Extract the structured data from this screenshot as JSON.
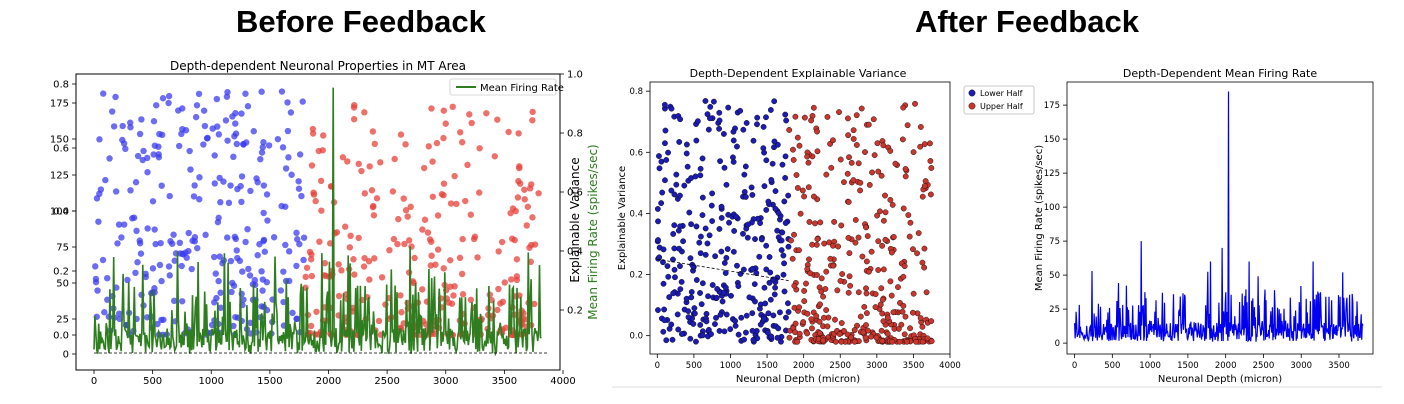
{
  "headings": {
    "before": "Before Feedback",
    "after": "After Feedback"
  },
  "chart_data": [
    {
      "type": "scatter",
      "panel": "before",
      "title": "Depth-dependent Neuronal Properties in MT Area",
      "xlabel": "",
      "ylabel_right_1": "Explainable Variance",
      "ylabel_right_2": "Mean Firing Rate (spikes/sec)",
      "x_ticks": [
        "0",
        "500",
        "1000",
        "1500",
        "2000",
        "2500",
        "3000",
        "3500",
        "4000"
      ],
      "y_left_ticks_rate": [
        "0",
        "25",
        "50",
        "75",
        "100",
        "125",
        "150",
        "175"
      ],
      "y_left_ticks_ev": [
        "0.0",
        "0.2",
        "0.4",
        "0.6",
        "0.8"
      ],
      "y_right_ticks": [
        "0.2",
        "0.4",
        "0.6",
        "0.8",
        "1.0"
      ],
      "legend": {
        "label": "Mean Firing Rate",
        "position": "top-right"
      },
      "series": [
        {
          "name": "Lower Half",
          "color": "#3b3bf0",
          "kind": "scatter"
        },
        {
          "name": "Upper Half",
          "color": "#e8403a",
          "kind": "scatter"
        },
        {
          "name": "Mean Firing Rate",
          "color": "#2e7d1f",
          "kind": "line"
        }
      ],
      "xlim": [
        -100,
        3900
      ]
    },
    {
      "type": "scatter",
      "panel": "after-left",
      "title": "Depth-Dependent Explainable Variance",
      "xlabel": "Neuronal Depth (micron)",
      "ylabel": "Explainable Variance",
      "x_ticks": [
        "0",
        "500",
        "1000",
        "1500",
        "2000",
        "2500",
        "3000",
        "3500",
        "4000"
      ],
      "y_ticks": [
        "0.0",
        "0.2",
        "0.4",
        "0.6",
        "0.8"
      ],
      "xlim": [
        -100,
        4000
      ],
      "ylim": [
        -0.06,
        0.83
      ],
      "legend": {
        "items": [
          "Lower Half",
          "Upper Half"
        ],
        "position": "outside-right"
      },
      "series": [
        {
          "name": "Lower Half",
          "color": "#1c1cb5"
        },
        {
          "name": "Upper Half",
          "color": "#c8362e"
        }
      ],
      "trend_line": {
        "x": [
          0,
          1800
        ],
        "y": [
          0.25,
          0.18
        ]
      }
    },
    {
      "type": "line",
      "panel": "after-right",
      "title": "Depth-Dependent Mean Firing Rate",
      "xlabel": "Neuronal Depth (micron)",
      "ylabel": "Mean Firing Rate (spikes/sec)",
      "x_ticks": [
        "0",
        "500",
        "1000",
        "1500",
        "2000",
        "2500",
        "3000",
        "3500"
      ],
      "y_ticks": [
        "0",
        "25",
        "50",
        "75",
        "100",
        "125",
        "150",
        "175"
      ],
      "xlim": [
        -100,
        3950
      ],
      "ylim": [
        -8,
        192
      ],
      "series": [
        {
          "name": "Mean Firing Rate",
          "color": "#0000ee"
        }
      ],
      "peaks": [
        [
          230,
          53
        ],
        [
          880,
          75
        ],
        [
          1950,
          70
        ],
        [
          2040,
          185
        ],
        [
          1800,
          60
        ],
        [
          2310,
          60
        ],
        [
          3160,
          60
        ],
        [
          3550,
          52
        ]
      ]
    }
  ]
}
